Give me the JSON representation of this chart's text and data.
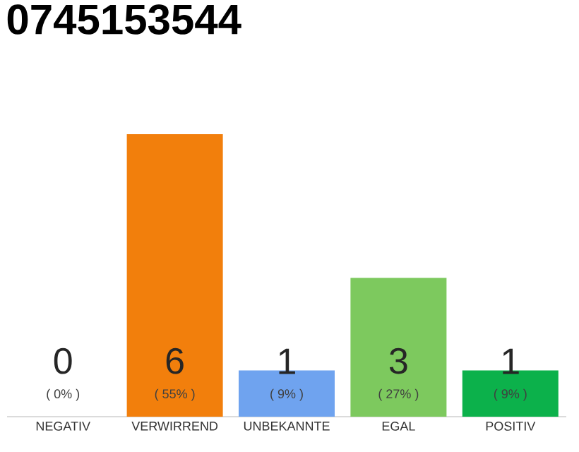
{
  "chart_data": {
    "type": "bar",
    "title": "0745153544",
    "categories": [
      "NEGATIV",
      "VERWIRREND",
      "UNBEKANNTE",
      "EGAL",
      "POSITIV"
    ],
    "values": [
      0,
      55,
      9,
      27,
      9
    ],
    "colors": [
      "#d9d9d9",
      "#f27f0c",
      "#6fa3ef",
      "#7dc95e",
      "#0cb14b"
    ],
    "value_labels": [
      "( 0% )",
      "( 55% )",
      "( 9% )",
      "( 27% )",
      "( 9% )"
    ],
    "annotations": [
      "0",
      "6",
      "1",
      "3",
      "1"
    ],
    "tick_labels": "x"
  }
}
